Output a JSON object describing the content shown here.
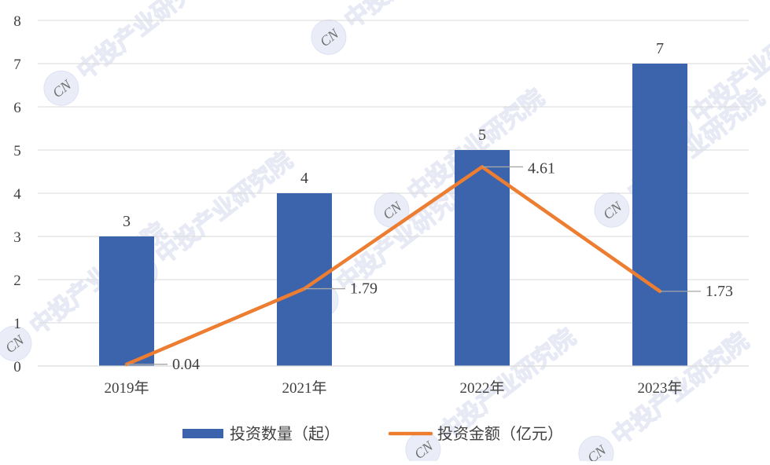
{
  "chart_data": {
    "type": "bar",
    "categories": [
      "2019年",
      "2021年",
      "2022年",
      "2023年"
    ],
    "series": [
      {
        "name": "投资数量（起）",
        "type": "bar",
        "values": [
          3,
          4,
          5,
          7
        ],
        "color": "#3b64ad"
      },
      {
        "name": "投资金额（亿元）",
        "type": "line",
        "values": [
          0.04,
          1.79,
          4.61,
          1.73
        ],
        "color": "#ed7d31"
      }
    ],
    "y_ticks": [
      "0",
      "1",
      "2",
      "3",
      "4",
      "5",
      "6",
      "7",
      "8"
    ],
    "ylim": [
      0,
      8
    ],
    "grid": true,
    "legend_position": "bottom",
    "title": "",
    "xlabel": "",
    "ylabel": ""
  },
  "watermark": {
    "text": "中投产业研究院",
    "logo_text": "CN"
  }
}
